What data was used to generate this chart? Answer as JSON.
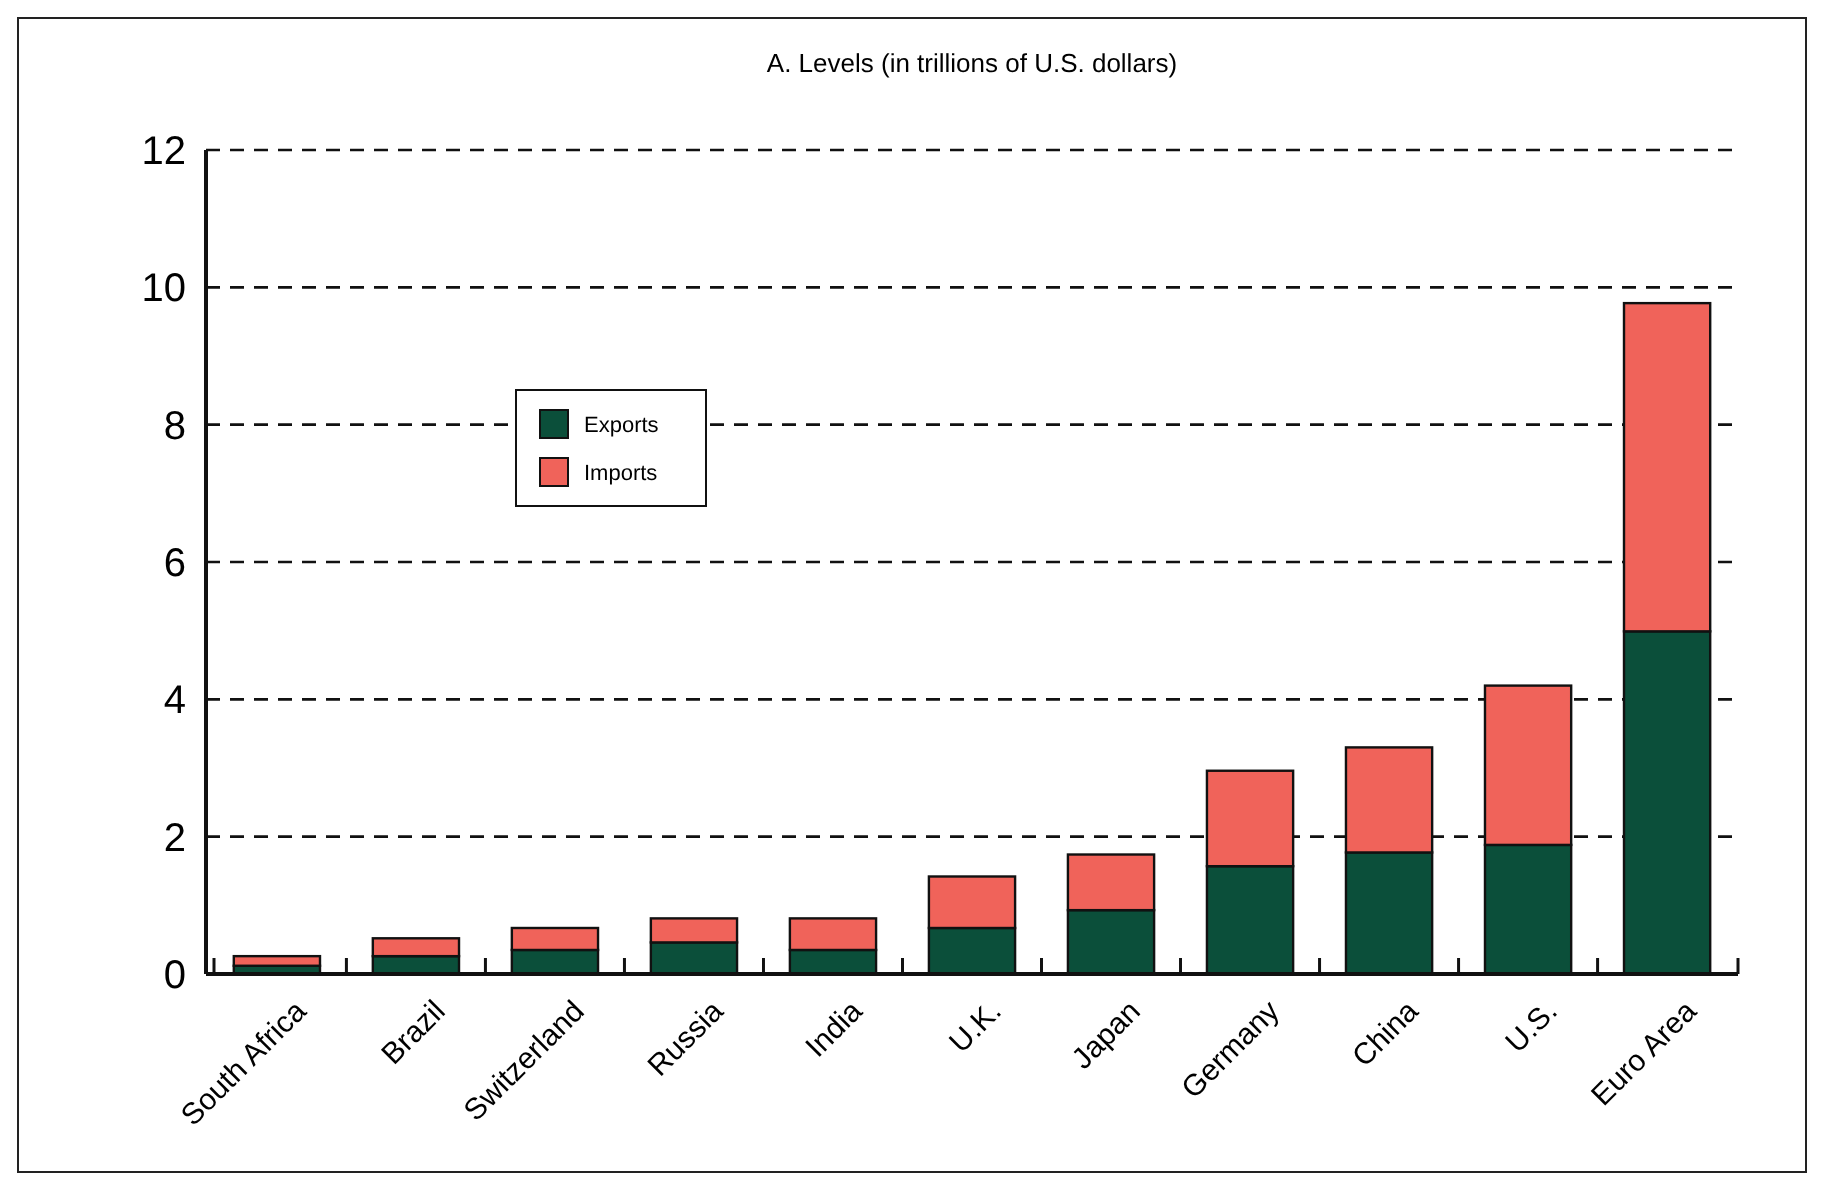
{
  "chart_data": {
    "type": "bar",
    "title": "A. Levels (in trillions of U.S. dollars)",
    "stacked": true,
    "categories": [
      "South Africa",
      "Brazil",
      "Switzerland",
      "Russia",
      "India",
      "U.K.",
      "Japan",
      "Germany",
      "China",
      "U.S.",
      "Euro Area"
    ],
    "series": [
      {
        "name": "Exports",
        "color": "#0b4f3a",
        "values": [
          0.12,
          0.26,
          0.35,
          0.46,
          0.35,
          0.67,
          0.93,
          1.57,
          1.77,
          1.88,
          4.99
        ]
      },
      {
        "name": "Imports",
        "color": "#f0635a",
        "values": [
          0.14,
          0.26,
          0.32,
          0.35,
          0.46,
          0.75,
          0.81,
          1.39,
          1.53,
          2.32,
          4.78
        ]
      }
    ],
    "ylim": [
      0,
      12
    ],
    "yticks": [
      0,
      2,
      4,
      6,
      8,
      10,
      12
    ],
    "grid": "y",
    "legend": "top left"
  }
}
